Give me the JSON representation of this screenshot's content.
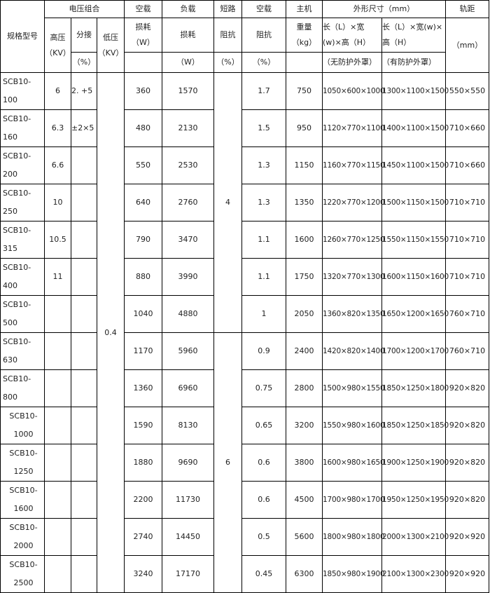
{
  "header": {
    "model": "规格型号",
    "voltage_group": "电压组合",
    "hv": "高压",
    "hv_unit": "（KV）",
    "tap": "分接",
    "tap_unit": "（%）",
    "lv": "低压",
    "lv_unit": "（KV）",
    "noload_top": "空载",
    "noload_loss": "损耗",
    "noload_unit": "（W）",
    "load_top": "负载",
    "load_loss": "损耗",
    "load_unit": "（W）",
    "sc_top": "短路",
    "sc_imp": "阻抗",
    "sc_unit": "（%）",
    "nl_imp_top": "空载",
    "nl_imp": "阻抗",
    "nl_imp_unit": "（%）",
    "main_top": "主机",
    "weight": "重量",
    "weight_unit": "（kg）",
    "dims": "外形尺寸（mm）",
    "dims_a": "长（L）×宽(w)×高（H）",
    "dims_a_note": "（无防护外罩）",
    "dims_b": "长（L）×宽(w)×高（H）",
    "dims_b_note": "（有防护外罩）",
    "gauge": "轨距",
    "gauge_unit": "（mm）"
  },
  "merged": {
    "lv_value": "0.4",
    "sc_group1": "4",
    "sc_group2": "6"
  },
  "rows": [
    {
      "model": "SCB10-100",
      "hv": "6",
      "tap": "2. +5",
      "nl_loss": "360",
      "load_loss": "1570",
      "nl_imp": "1.7",
      "weight": "750",
      "dim_a": "1050×600×1000",
      "dim_b": "1300×1100×1500",
      "gauge": "550×550"
    },
    {
      "model": "SCB10-160",
      "hv": "6.3",
      "tap": "±2×5",
      "nl_loss": "480",
      "load_loss": "2130",
      "nl_imp": "1.5",
      "weight": "950",
      "dim_a": "1120×770×1100",
      "dim_b": "1400×1100×1500",
      "gauge": "710×660"
    },
    {
      "model": "SCB10-200",
      "hv": "6.6",
      "tap": "",
      "nl_loss": "550",
      "load_loss": "2530",
      "nl_imp": "1.3",
      "weight": "1150",
      "dim_a": "1160×770×1150",
      "dim_b": "1450×1100×1500",
      "gauge": "710×660"
    },
    {
      "model": "SCB10-250",
      "hv": "10",
      "tap": "",
      "nl_loss": "640",
      "load_loss": "2760",
      "nl_imp": "1.3",
      "weight": "1350",
      "dim_a": "1220×770×1200",
      "dim_b": "1500×1150×1500",
      "gauge": "710×710"
    },
    {
      "model": "SCB10-315",
      "hv": "10.5",
      "tap": "",
      "nl_loss": "790",
      "load_loss": "3470",
      "nl_imp": "1.1",
      "weight": "1600",
      "dim_a": "1260×770×1250",
      "dim_b": "1550×1150×1550",
      "gauge": "710×710"
    },
    {
      "model": "SCB10-400",
      "hv": "11",
      "tap": "",
      "nl_loss": "880",
      "load_loss": "3990",
      "nl_imp": "1.1",
      "weight": "1750",
      "dim_a": "1320×770×1300",
      "dim_b": "1600×1150×1600",
      "gauge": "710×710"
    },
    {
      "model": "SCB10-500",
      "hv": "",
      "tap": "",
      "nl_loss": "1040",
      "load_loss": "4880",
      "nl_imp": "1",
      "weight": "2050",
      "dim_a": "1360×820×1350",
      "dim_b": "1650×1200×1650",
      "gauge": "760×710"
    },
    {
      "model": "SCB10-630",
      "hv": "",
      "tap": "",
      "nl_loss": "1170",
      "load_loss": "5960",
      "nl_imp": "0.9",
      "weight": "2400",
      "dim_a": "1420×820×1400",
      "dim_b": "1700×1200×1700",
      "gauge": "760×710"
    },
    {
      "model": "SCB10-800",
      "hv": "",
      "tap": "",
      "nl_loss": "1360",
      "load_loss": "6960",
      "nl_imp": "0.75",
      "weight": "2800",
      "dim_a": "1500×980×1550",
      "dim_b": "1850×1250×1800",
      "gauge": "920×820"
    },
    {
      "model": "SCB10-1000",
      "hv": "",
      "tap": "",
      "nl_loss": "1590",
      "load_loss": "8130",
      "nl_imp": "0.65",
      "weight": "3200",
      "dim_a": "1550×980×1600",
      "dim_b": "1850×1250×1850",
      "gauge": "920×820"
    },
    {
      "model": "SCB10-1250",
      "hv": "",
      "tap": "",
      "nl_loss": "1880",
      "load_loss": "9690",
      "nl_imp": "0.6",
      "weight": "3800",
      "dim_a": "1600×980×1650",
      "dim_b": "1900×1250×1900",
      "gauge": "920×820"
    },
    {
      "model": "SCB10-1600",
      "hv": "",
      "tap": "",
      "nl_loss": "2200",
      "load_loss": "11730",
      "nl_imp": "0.6",
      "weight": "4500",
      "dim_a": "1700×980×1700",
      "dim_b": "1950×1250×1950",
      "gauge": "920×820"
    },
    {
      "model": "SCB10-2000",
      "hv": "",
      "tap": "",
      "nl_loss": "2740",
      "load_loss": "14450",
      "nl_imp": "0.5",
      "weight": "5600",
      "dim_a": "1800×980×1800",
      "dim_b": "2000×1300×2100",
      "gauge": "920×920"
    },
    {
      "model": "SCB10-2500",
      "hv": "",
      "tap": "",
      "nl_loss": "3240",
      "load_loss": "17170",
      "nl_imp": "0.45",
      "weight": "6300",
      "dim_a": "1850×980×1900",
      "dim_b": "2100×1300×2300",
      "gauge": "920×920"
    }
  ]
}
